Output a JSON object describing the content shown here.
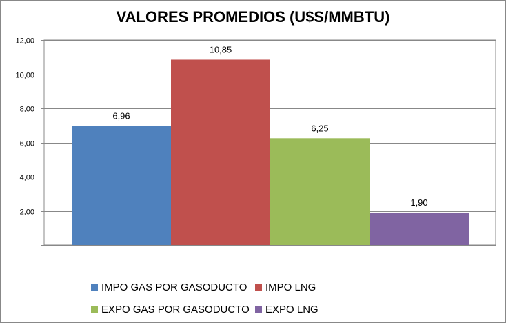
{
  "chart_data": {
    "type": "bar",
    "title": "VALORES PROMEDIOS (U$S/MMBTU)",
    "xlabel": "",
    "ylabel": "",
    "categories": [
      "IMPO GAS POR GASODUCTO",
      "IMPO LNG",
      "EXPO GAS POR GASODUCTO",
      "EXPO LNG"
    ],
    "values": [
      6.96,
      10.85,
      6.25,
      1.9
    ],
    "value_labels": [
      "6,96",
      "10,85",
      "6,25",
      "1,90"
    ],
    "colors": [
      "#4F81BD",
      "#C0504D",
      "#9BBB59",
      "#8064A2"
    ],
    "ylim": [
      0,
      12
    ],
    "y_ticks": [
      0,
      2,
      4,
      6,
      8,
      10,
      12
    ],
    "y_tick_labels": [
      "-",
      "2,00",
      "4,00",
      "6,00",
      "8,00",
      "10,00",
      "12,00"
    ],
    "grid": true,
    "legend_position": "bottom"
  }
}
